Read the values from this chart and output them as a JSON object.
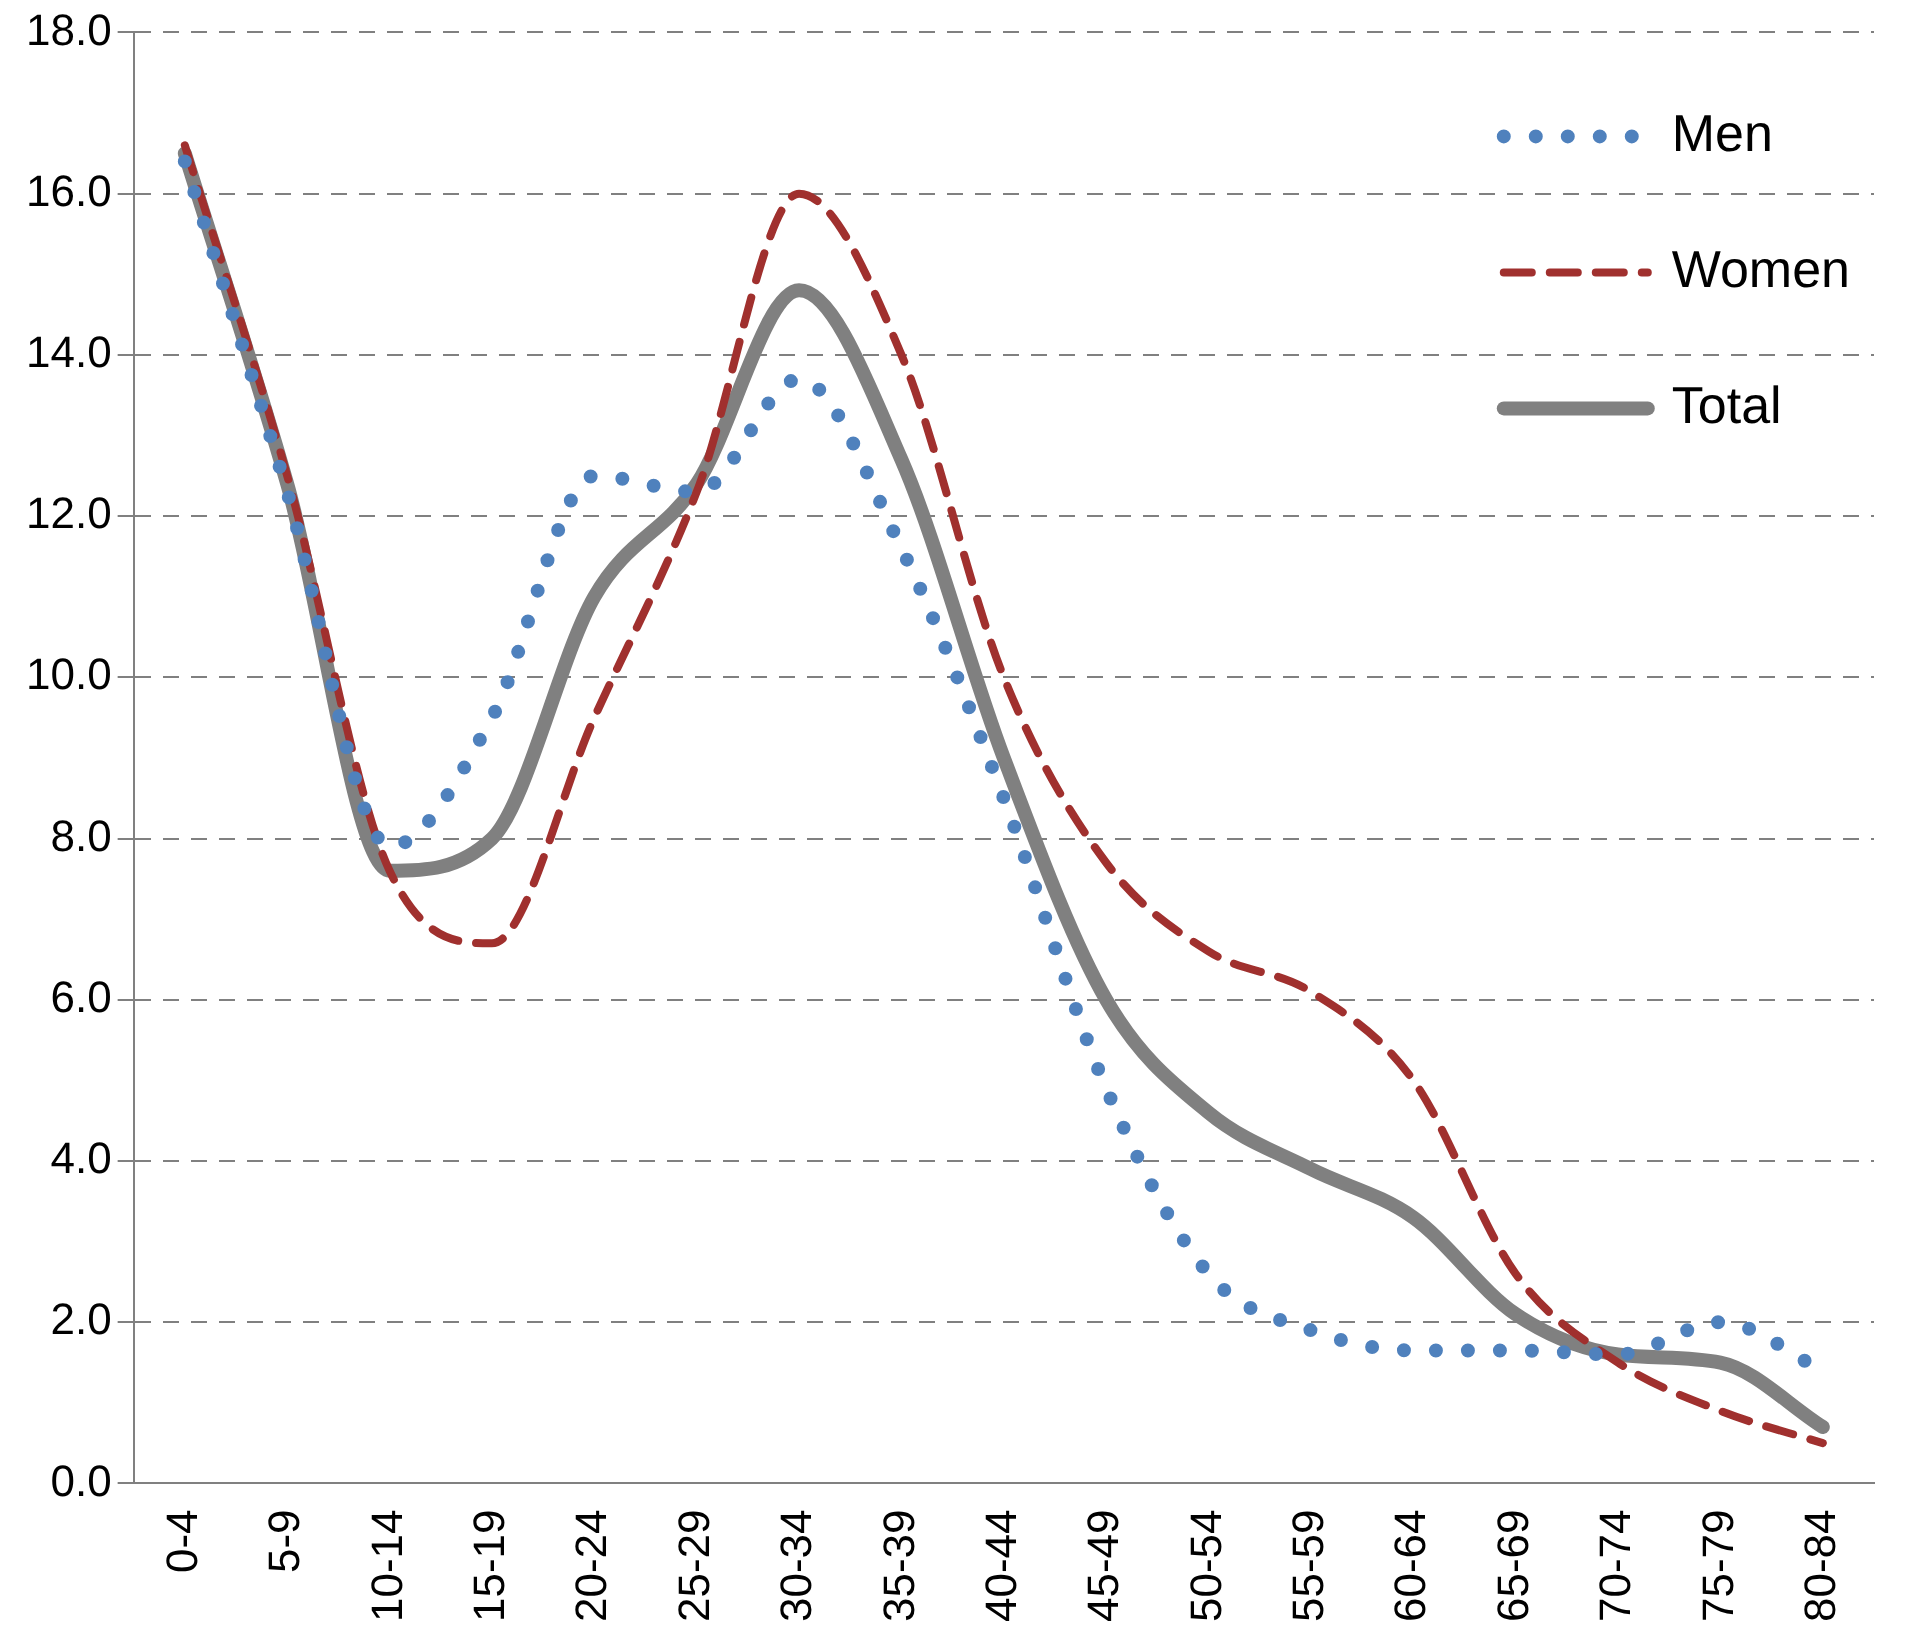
{
  "chart_data": {
    "type": "line",
    "categories": [
      "0-4",
      "5-9",
      "10-14",
      "15-19",
      "20-24",
      "25-29",
      "30-34",
      "35-39",
      "40-44",
      "45-49",
      "50-54",
      "55-59",
      "60-64",
      "65-69",
      "70-74",
      "75-79",
      "80-84"
    ],
    "series": [
      {
        "name": "Men",
        "color": "#4f81bd",
        "line_style": "dotted",
        "values": [
          16.4,
          12.3,
          7.9,
          9.5,
          12.5,
          12.3,
          13.7,
          11.6,
          8.5,
          4.9,
          2.6,
          1.9,
          1.65,
          1.65,
          1.6,
          2.0,
          1.4
        ]
      },
      {
        "name": "Women",
        "color": "#a0302e",
        "line_style": "dashed",
        "values": [
          16.6,
          12.5,
          7.6,
          6.7,
          9.5,
          12.3,
          16.0,
          14.0,
          10.0,
          7.7,
          6.6,
          6.1,
          5.0,
          2.6,
          1.5,
          0.9,
          0.5
        ]
      },
      {
        "name": "Total",
        "color": "#808080",
        "line_style": "solid",
        "values": [
          16.5,
          12.4,
          7.6,
          8.0,
          11.0,
          12.4,
          14.8,
          12.7,
          9.0,
          6.0,
          4.6,
          3.9,
          3.3,
          2.1,
          1.6,
          1.5,
          0.7
        ]
      }
    ],
    "ylim": [
      0,
      18
    ],
    "yticks": [
      {
        "value": 0,
        "label": "0.0"
      },
      {
        "value": 2,
        "label": "2.0"
      },
      {
        "value": 4,
        "label": "4.0"
      },
      {
        "value": 6,
        "label": "6.0"
      },
      {
        "value": 8,
        "label": "8.0"
      },
      {
        "value": 10,
        "label": "10.0"
      },
      {
        "value": 12,
        "label": "12.0"
      },
      {
        "value": 14,
        "label": "14.0"
      },
      {
        "value": 16,
        "label": "16.0"
      },
      {
        "value": 18,
        "label": "18.0"
      }
    ],
    "grid": "y",
    "legend": "top right",
    "marker": "none"
  }
}
